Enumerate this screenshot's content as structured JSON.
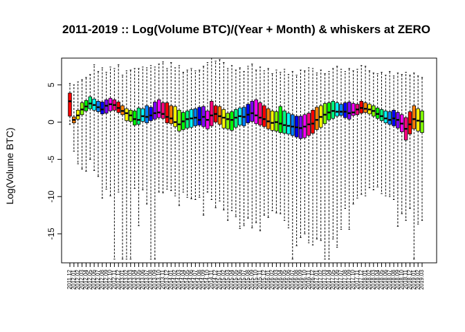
{
  "chart_data": {
    "type": "boxplot",
    "title": "2011-2019 :: Log(Volume BTC)/(Year + Month) & whiskers at ZERO",
    "ylabel": "Log(Volume BTC)",
    "xlabel": "",
    "ylim": [
      -18.9,
      8.6
    ],
    "yticks": [
      -15,
      -10,
      -5,
      0,
      5
    ],
    "grid": false,
    "legend": "none",
    "palette": [
      "#FF0000",
      "#FF8000",
      "#FFFF00",
      "#80FF00",
      "#00FF00",
      "#00FF80",
      "#00FFFF",
      "#0080FF",
      "#0000FF",
      "#8000FF",
      "#FF00FF",
      "#FF0080"
    ],
    "median_color": "#000000",
    "whisker_style": "dashed",
    "categories": [
      "2011.12",
      "2012.01",
      "2012.02",
      "2012.03",
      "2012.04",
      "2012.05",
      "2012.06",
      "2012.07",
      "2012.08",
      "2012.09",
      "2012.10",
      "2012.11",
      "2012.12",
      "2013.01",
      "2013.02",
      "2013.03",
      "2013.04",
      "2013.05",
      "2013.06",
      "2013.07",
      "2013.08",
      "2013.09",
      "2013.10",
      "2013.11",
      "2013.12",
      "2014.01",
      "2014.02",
      "2014.03",
      "2014.04",
      "2014.05",
      "2014.06",
      "2014.07",
      "2014.08",
      "2014.09",
      "2014.10",
      "2014.11",
      "2014.12",
      "2015.01",
      "2015.02",
      "2015.03",
      "2015.04",
      "2015.05",
      "2015.06",
      "2015.07",
      "2015.08",
      "2015.09",
      "2015.10",
      "2015.11",
      "2015.12",
      "2016.01",
      "2016.02",
      "2016.03",
      "2016.04",
      "2016.05",
      "2016.06",
      "2016.07",
      "2016.08",
      "2016.09",
      "2016.10",
      "2016.11",
      "2016.12",
      "2017.01",
      "2017.02",
      "2017.03",
      "2017.04",
      "2017.05",
      "2017.06",
      "2017.07",
      "2017.08",
      "2017.09",
      "2017.10",
      "2017.11",
      "2017.12",
      "2018.01",
      "2018.02",
      "2018.03",
      "2018.04",
      "2018.05",
      "2018.06",
      "2018.07",
      "2018.08",
      "2018.09",
      "2018.10",
      "2018.11",
      "2018.12",
      "2019.01",
      "2019.02",
      "2019.03"
    ],
    "q1": [
      0.8,
      -0.1,
      0.4,
      1.0,
      1.5,
      1.8,
      1.6,
      1.4,
      1.1,
      1.2,
      1.5,
      1.6,
      1.3,
      1.0,
      0.2,
      0.1,
      -0.4,
      -0.3,
      0.1,
      -0.1,
      0.2,
      0.4,
      0.6,
      0.5,
      -0.1,
      -0.2,
      -0.6,
      -1.2,
      -1.0,
      -0.8,
      -0.7,
      -0.5,
      -0.4,
      -0.6,
      -0.9,
      -0.5,
      0.0,
      -0.3,
      -0.8,
      -0.9,
      -1.1,
      -0.7,
      -0.4,
      -0.5,
      -0.1,
      0.1,
      -0.2,
      -0.4,
      -0.6,
      -0.9,
      -1.1,
      -1.2,
      -1.4,
      -1.5,
      -1.6,
      -1.8,
      -2.0,
      -2.2,
      -2.1,
      -1.8,
      -1.5,
      -1.0,
      -0.7,
      -0.2,
      0.3,
      0.5,
      0.8,
      0.9,
      0.6,
      0.4,
      0.9,
      1.0,
      1.2,
      1.3,
      1.1,
      0.8,
      0.5,
      0.2,
      -0.1,
      -0.3,
      -0.5,
      -0.8,
      -1.3,
      -2.4,
      -1.6,
      -0.9,
      -1.2,
      -1.4
    ],
    "q3": [
      3.9,
      0.7,
      1.6,
      2.6,
      2.9,
      3.4,
      3.1,
      2.8,
      2.7,
      3.0,
      3.2,
      3.0,
      2.7,
      2.2,
      1.8,
      1.6,
      1.5,
      1.9,
      1.8,
      2.2,
      2.0,
      2.7,
      3.0,
      2.6,
      2.6,
      2.2,
      2.1,
      1.6,
      1.3,
      1.5,
      1.7,
      1.8,
      2.0,
      2.1,
      1.5,
      2.8,
      2.2,
      2.1,
      1.7,
      1.2,
      1.4,
      1.7,
      1.9,
      2.0,
      2.4,
      2.8,
      3.0,
      2.6,
      2.2,
      1.8,
      1.5,
      1.4,
      2.1,
      1.5,
      1.2,
      1.0,
      0.8,
      0.8,
      1.0,
      1.2,
      1.6,
      2.0,
      2.2,
      2.5,
      2.6,
      2.8,
      2.6,
      2.4,
      2.6,
      2.7,
      2.5,
      2.4,
      2.8,
      2.6,
      2.4,
      2.2,
      1.9,
      1.7,
      1.5,
      1.4,
      1.6,
      1.3,
      1.0,
      0.6,
      1.4,
      2.2,
      1.8,
      1.5
    ],
    "median": [
      2.8,
      0.3,
      0.9,
      1.7,
      2.1,
      2.5,
      2.3,
      2.0,
      1.7,
      2.2,
      2.4,
      2.3,
      1.9,
      1.5,
      1.2,
      0.9,
      0.4,
      0.3,
      0.8,
      0.7,
      0.9,
      1.2,
      1.3,
      1.1,
      0.7,
      0.5,
      0.0,
      -0.3,
      0.1,
      0.4,
      0.5,
      0.6,
      0.3,
      0.7,
      0.3,
      0.9,
      1.1,
      0.8,
      0.6,
      0.4,
      0.3,
      0.6,
      0.8,
      0.7,
      1.0,
      1.2,
      0.9,
      0.6,
      0.4,
      0.1,
      -0.1,
      0.0,
      -0.2,
      -0.4,
      -0.5,
      -0.6,
      -0.7,
      -0.8,
      -0.6,
      -0.3,
      -0.2,
      0.3,
      0.7,
      1.0,
      1.3,
      1.5,
      1.4,
      1.4,
      1.4,
      1.2,
      1.3,
      1.7,
      1.9,
      1.8,
      1.7,
      1.5,
      1.1,
      0.8,
      0.5,
      0.3,
      0.5,
      0.3,
      -0.2,
      -0.9,
      -0.3,
      0.4,
      0.2,
      0.1
    ],
    "whisker_low": [
      -0.3,
      -3.9,
      -5.6,
      -6.3,
      -6.6,
      -5.0,
      -6.5,
      -7.3,
      -10.2,
      -9.0,
      -9.9,
      -18.4,
      -9.4,
      -18.4,
      -18.4,
      -18.4,
      -8.9,
      -13.9,
      -9.1,
      -11.0,
      -18.4,
      -18.4,
      -9.4,
      -9.5,
      -9.0,
      -9.2,
      -9.9,
      -11.2,
      -9.4,
      -10.1,
      -10.3,
      -10.4,
      -10.1,
      -12.5,
      -9.4,
      -10.4,
      -11.5,
      -10.6,
      -11.8,
      -13.2,
      -11.9,
      -12.7,
      -14.3,
      -13.9,
      -12.9,
      -14.2,
      -13.5,
      -14.6,
      -12.5,
      -12.8,
      -11.9,
      -12.2,
      -12.3,
      -13.2,
      -14.2,
      -18.4,
      -16.6,
      -15.5,
      -15.0,
      -16.2,
      -16.5,
      -15.7,
      -15.9,
      -18.4,
      -18.4,
      -15.7,
      -16.8,
      -14.4,
      -11.6,
      -14.4,
      -11.0,
      -10.2,
      -9.7,
      -9.9,
      -8.8,
      -9.1,
      -8.7,
      -9.6,
      -9.9,
      -10.0,
      -10.4,
      -14.0,
      -12.3,
      -13.2,
      -11.6,
      -18.4,
      -13.7,
      -13.2
    ],
    "whisker_high": [
      5.2,
      5.0,
      5.4,
      5.7,
      6.0,
      6.4,
      7.7,
      6.8,
      7.3,
      6.7,
      7.4,
      7.2,
      7.7,
      6.3,
      6.9,
      7.0,
      7.2,
      7.2,
      7.4,
      7.3,
      7.6,
      7.4,
      7.8,
      8.1,
      7.2,
      8.0,
      7.3,
      7.6,
      6.7,
      7.0,
      7.2,
      6.9,
      7.0,
      7.5,
      8.0,
      8.6,
      8.2,
      8.4,
      8.0,
      7.2,
      7.6,
      7.0,
      7.3,
      6.8,
      7.5,
      7.8,
      7.0,
      7.4,
      6.9,
      7.2,
      6.5,
      7.0,
      6.7,
      7.1,
      6.4,
      6.8,
      6.3,
      7.0,
      6.9,
      7.3,
      7.2,
      6.6,
      7.0,
      6.5,
      6.8,
      7.2,
      7.5,
      7.1,
      6.8,
      7.2,
      6.9,
      7.1,
      7.6,
      7.5,
      6.9,
      6.6,
      6.5,
      6.7,
      6.3,
      6.8,
      6.2,
      6.6,
      6.4,
      6.7,
      6.3,
      6.6,
      6.2,
      6.0
    ]
  }
}
